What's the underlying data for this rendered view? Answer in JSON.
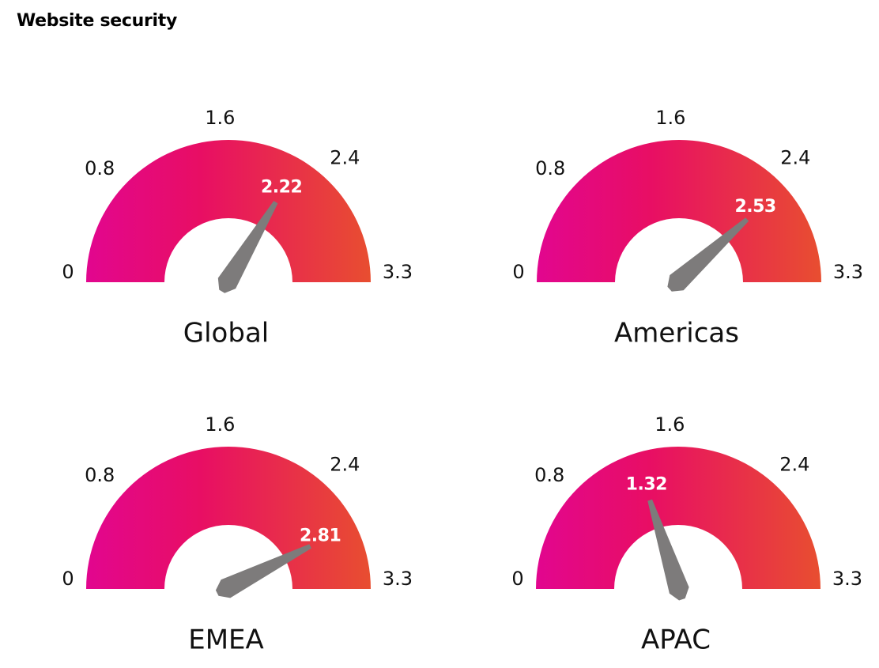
{
  "title": "Website security",
  "colors": {
    "gradient_start": "#E2068F",
    "gradient_mid": "#E80E64",
    "gradient_end": "#E84E30",
    "needle": "#7D7B7B",
    "value_text": "#FFFFFF",
    "text": "#111111"
  },
  "chart_data": [
    {
      "type": "gauge",
      "label": "Global",
      "value": 2.22,
      "value_label": "2.22",
      "min": 0,
      "max": 3.3,
      "ticks": [
        {
          "value": 0,
          "label": "0"
        },
        {
          "value": 0.8,
          "label": "0.8"
        },
        {
          "value": 1.6,
          "label": "1.6"
        },
        {
          "value": 2.4,
          "label": "2.4"
        },
        {
          "value": 3.3,
          "label": "3.3"
        }
      ]
    },
    {
      "type": "gauge",
      "label": "Americas",
      "value": 2.53,
      "value_label": "2.53",
      "min": 0,
      "max": 3.3,
      "ticks": [
        {
          "value": 0,
          "label": "0"
        },
        {
          "value": 0.8,
          "label": "0.8"
        },
        {
          "value": 1.6,
          "label": "1.6"
        },
        {
          "value": 2.4,
          "label": "2.4"
        },
        {
          "value": 3.3,
          "label": "3.3"
        }
      ]
    },
    {
      "type": "gauge",
      "label": "EMEA",
      "value": 2.81,
      "value_label": "2.81",
      "min": 0,
      "max": 3.3,
      "ticks": [
        {
          "value": 0,
          "label": "0"
        },
        {
          "value": 0.8,
          "label": "0.8"
        },
        {
          "value": 1.6,
          "label": "1.6"
        },
        {
          "value": 2.4,
          "label": "2.4"
        },
        {
          "value": 3.3,
          "label": "3.3"
        }
      ]
    },
    {
      "type": "gauge",
      "label": "APAC",
      "value": 1.32,
      "value_label": "1.32",
      "min": 0,
      "max": 3.3,
      "ticks": [
        {
          "value": 0,
          "label": "0"
        },
        {
          "value": 0.8,
          "label": "0.8"
        },
        {
          "value": 1.6,
          "label": "1.6"
        },
        {
          "value": 2.4,
          "label": "2.4"
        },
        {
          "value": 3.3,
          "label": "3.3"
        }
      ]
    }
  ]
}
